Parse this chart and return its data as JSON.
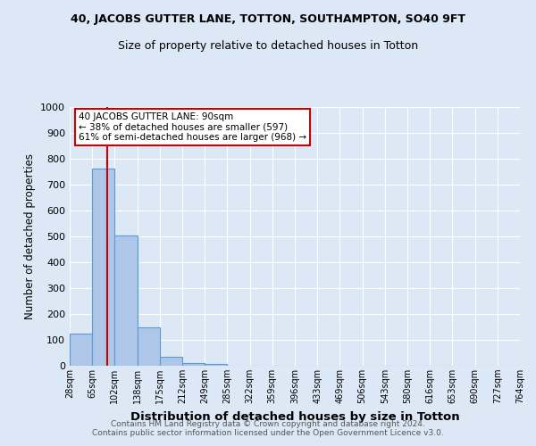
{
  "title": "40, JACOBS GUTTER LANE, TOTTON, SOUTHAMPTON, SO40 9FT",
  "subtitle": "Size of property relative to detached houses in Totton",
  "xlabel": "Distribution of detached houses by size in Totton",
  "ylabel": "Number of detached properties",
  "footer_line1": "Contains HM Land Registry data © Crown copyright and database right 2024.",
  "footer_line2": "Contains public sector information licensed under the Open Government Licence v3.0.",
  "bins": [
    "28sqm",
    "65sqm",
    "102sqm",
    "138sqm",
    "175sqm",
    "212sqm",
    "249sqm",
    "285sqm",
    "322sqm",
    "359sqm",
    "396sqm",
    "433sqm",
    "469sqm",
    "506sqm",
    "543sqm",
    "580sqm",
    "616sqm",
    "653sqm",
    "690sqm",
    "727sqm",
    "764sqm"
  ],
  "bar_values": [
    125,
    762,
    505,
    148,
    35,
    10,
    7,
    0,
    0,
    0,
    0,
    0,
    0,
    0,
    0,
    0,
    0,
    0,
    0,
    0
  ],
  "bar_color": "#aec6e8",
  "bar_edge_color": "#5b9bd5",
  "background_color": "#dce8f5",
  "grid_color": "#ffffff",
  "ylim": [
    0,
    1000
  ],
  "yticks": [
    0,
    100,
    200,
    300,
    400,
    500,
    600,
    700,
    800,
    900,
    1000
  ],
  "property_size_sqm": 90,
  "bin_edges": [
    28,
    65,
    102,
    138,
    175,
    212,
    249,
    285,
    322,
    359,
    396,
    433,
    469,
    506,
    543,
    580,
    616,
    653,
    690,
    727,
    764
  ],
  "annotation_text_line1": "40 JACOBS GUTTER LANE: 90sqm",
  "annotation_text_line2": "← 38% of detached houses are smaller (597)",
  "annotation_text_line3": "61% of semi-detached houses are larger (968) →",
  "annotation_box_color": "#ffffff",
  "annotation_border_color": "#cc0000",
  "red_line_color": "#cc0000",
  "title_fontsize": 9,
  "subtitle_fontsize": 9
}
